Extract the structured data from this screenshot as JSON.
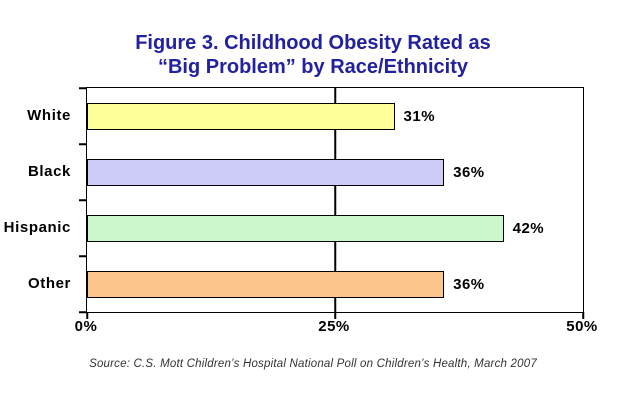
{
  "title": {
    "line1": "Figure 3. Childhood Obesity Rated as",
    "line2": "“Big Problem” by Race/Ethnicity"
  },
  "source_note": "Source: C.S. Mott Children’s Hospital National Poll on Children’s Health, March 2007",
  "colors": {
    "title_text": "#22229E",
    "axis": "#000000",
    "bar_border": "#000000",
    "background": "#FFFFFF",
    "source_text": "#333333"
  },
  "chart_data": {
    "type": "bar",
    "orientation": "horizontal",
    "title": "Figure 3. Childhood Obesity Rated as “Big Problem” by Race/Ethnicity",
    "categories": [
      "White",
      "Black",
      "Hispanic",
      "Other"
    ],
    "values": [
      31,
      36,
      42,
      36
    ],
    "value_labels": [
      "31%",
      "36%",
      "42%",
      "36%"
    ],
    "bar_colors": [
      "#FFFF99",
      "#CDCCF9",
      "#CCF7CC",
      "#FBC58C"
    ],
    "xlabel": "",
    "ylabel": "",
    "xlim": [
      0,
      50
    ],
    "x_ticks": [
      {
        "label": "0%",
        "value": 0
      },
      {
        "label": "25%",
        "value": 25
      },
      {
        "label": "50%",
        "value": 50
      }
    ],
    "gridlines_at": [
      25
    ],
    "legend_position": "none",
    "grid": "vertical gridline at 25% only"
  }
}
